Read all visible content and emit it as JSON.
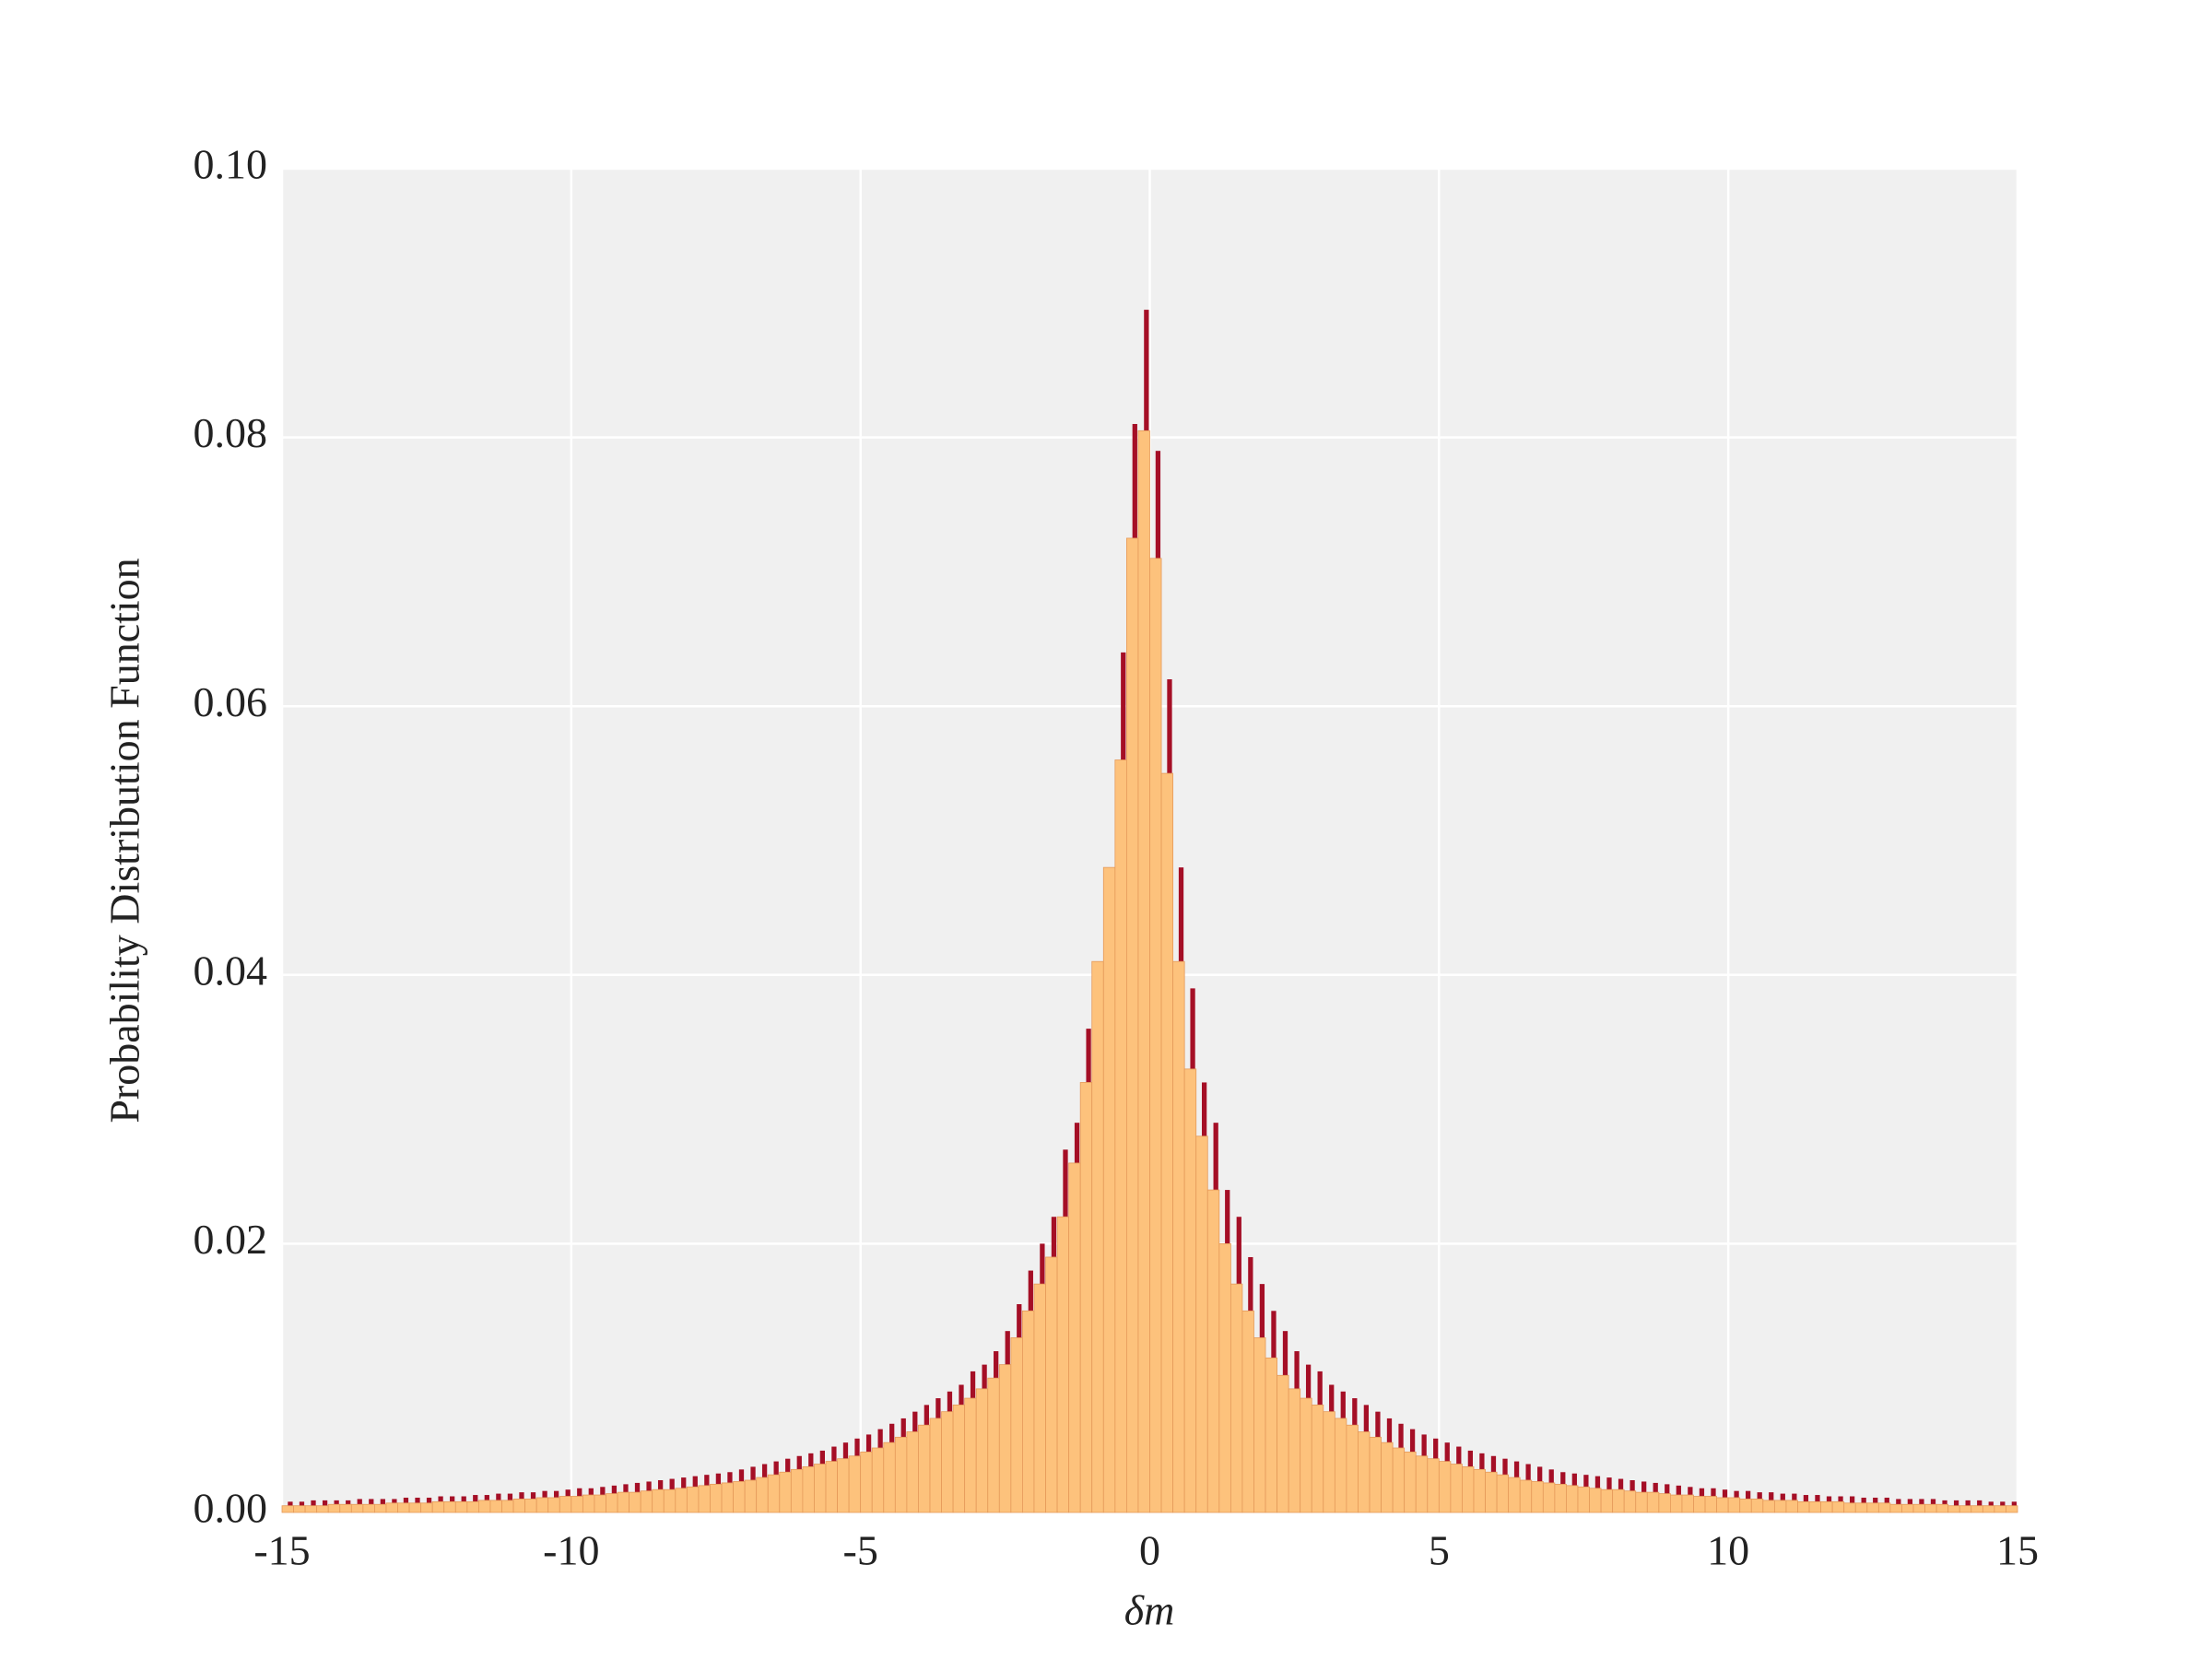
{
  "chart_data": {
    "type": "histogram",
    "xlabel": "δm",
    "ylabel": "Probability Distribution Function",
    "bins": [
      -15,
      -14.8,
      -14.6,
      -14.4,
      -14.2,
      -14,
      -13.8,
      -13.6,
      -13.4,
      -13.2,
      -13,
      -12.8,
      -12.6,
      -12.4,
      -12.2,
      -12,
      -11.8,
      -11.6,
      -11.4,
      -11.2,
      -11,
      -10.8,
      -10.6,
      -10.4,
      -10.2,
      -10,
      -9.8,
      -9.6,
      -9.4,
      -9.2,
      -9,
      -8.8,
      -8.6,
      -8.4,
      -8.2,
      -8,
      -7.8,
      -7.6,
      -7.4,
      -7.2,
      -7,
      -6.8,
      -6.6,
      -6.4,
      -6.2,
      -6,
      -5.8,
      -5.6,
      -5.4,
      -5.2,
      -5,
      -4.8,
      -4.6,
      -4.4,
      -4.2,
      -4,
      -3.8,
      -3.6,
      -3.4,
      -3.2,
      -3,
      -2.8,
      -2.6,
      -2.4,
      -2.2,
      -2,
      -1.8,
      -1.6,
      -1.4,
      -1.2,
      -1,
      -0.8,
      -0.6,
      -0.4,
      -0.2,
      0,
      0.2,
      0.4,
      0.6,
      0.8,
      1,
      1.2,
      1.4,
      1.6,
      1.8,
      2,
      2.2,
      2.4,
      2.6,
      2.8,
      3,
      3.2,
      3.4,
      3.6,
      3.8,
      4,
      4.2,
      4.4,
      4.6,
      4.8,
      5,
      5.2,
      5.4,
      5.6,
      5.8,
      6,
      6.2,
      6.4,
      6.6,
      6.8,
      7,
      7.2,
      7.4,
      7.6,
      7.8,
      8,
      8.2,
      8.4,
      8.6,
      8.8,
      9,
      9.2,
      9.4,
      9.6,
      9.8,
      10,
      10.2,
      10.4,
      10.6,
      10.8,
      11,
      11.2,
      11.4,
      11.6,
      11.8,
      12,
      12.2,
      12.4,
      12.6,
      12.8,
      13,
      13.2,
      13.4,
      13.6,
      13.8,
      14,
      14.2,
      14.4,
      14.6,
      14.8,
      15
    ],
    "series": [
      {
        "color": "#a50f26",
        "values": [
          0.0008,
          0.0008,
          0.0009,
          0.0009,
          0.0009,
          0.0009,
          0.001,
          0.001,
          0.001,
          0.001,
          0.0011,
          0.0011,
          0.0011,
          0.0012,
          0.0012,
          0.0012,
          0.0013,
          0.0013,
          0.0014,
          0.0014,
          0.0015,
          0.0015,
          0.0016,
          0.0016,
          0.0017,
          0.0018,
          0.0018,
          0.0019,
          0.002,
          0.0021,
          0.0022,
          0.0023,
          0.0024,
          0.0025,
          0.0026,
          0.0027,
          0.0028,
          0.0029,
          0.003,
          0.0032,
          0.0034,
          0.0036,
          0.0038,
          0.004,
          0.0042,
          0.0044,
          0.0046,
          0.0049,
          0.0052,
          0.0055,
          0.0058,
          0.0062,
          0.0066,
          0.007,
          0.0075,
          0.008,
          0.0085,
          0.009,
          0.0095,
          0.0105,
          0.011,
          0.012,
          0.0135,
          0.0155,
          0.018,
          0.02,
          0.022,
          0.027,
          0.029,
          0.036,
          0.04,
          0.048,
          0.064,
          0.081,
          0.0895,
          0.079,
          0.062,
          0.048,
          0.039,
          0.032,
          0.029,
          0.024,
          0.022,
          0.019,
          0.017,
          0.015,
          0.0135,
          0.012,
          0.011,
          0.0105,
          0.0095,
          0.009,
          0.0085,
          0.008,
          0.0075,
          0.007,
          0.0066,
          0.0062,
          0.0058,
          0.0055,
          0.0052,
          0.0049,
          0.0046,
          0.0044,
          0.0042,
          0.004,
          0.0038,
          0.0036,
          0.0034,
          0.0032,
          0.003,
          0.0029,
          0.0028,
          0.0027,
          0.0026,
          0.0025,
          0.0024,
          0.0023,
          0.0022,
          0.0021,
          0.002,
          0.0019,
          0.0018,
          0.0018,
          0.0017,
          0.0016,
          0.0016,
          0.0015,
          0.0015,
          0.0014,
          0.0014,
          0.0013,
          0.0013,
          0.0012,
          0.0012,
          0.0012,
          0.0011,
          0.0011,
          0.0011,
          0.001,
          0.001,
          0.001,
          0.001,
          0.0009,
          0.0009,
          0.0009,
          0.0009,
          0.0008,
          0.0008,
          0.0008
        ]
      },
      {
        "color": "#fdc27c",
        "values": [
          0.0005,
          0.0005,
          0.0005,
          0.0005,
          0.0006,
          0.0006,
          0.0006,
          0.0006,
          0.0006,
          0.0007,
          0.0007,
          0.0007,
          0.0007,
          0.0008,
          0.0008,
          0.0008,
          0.0008,
          0.0009,
          0.0009,
          0.0009,
          0.001,
          0.001,
          0.0011,
          0.0011,
          0.0012,
          0.0012,
          0.0013,
          0.0013,
          0.0014,
          0.0015,
          0.0015,
          0.0016,
          0.0017,
          0.0017,
          0.0018,
          0.0019,
          0.002,
          0.0021,
          0.0022,
          0.0023,
          0.0024,
          0.0026,
          0.0028,
          0.003,
          0.0032,
          0.0034,
          0.0036,
          0.0038,
          0.004,
          0.0042,
          0.0045,
          0.0048,
          0.0052,
          0.0056,
          0.006,
          0.0065,
          0.007,
          0.0075,
          0.008,
          0.0085,
          0.0092,
          0.01,
          0.011,
          0.013,
          0.015,
          0.017,
          0.019,
          0.022,
          0.026,
          0.032,
          0.041,
          0.048,
          0.056,
          0.0725,
          0.0805,
          0.071,
          0.055,
          0.041,
          0.033,
          0.028,
          0.024,
          0.02,
          0.017,
          0.015,
          0.013,
          0.0115,
          0.0102,
          0.0092,
          0.0085,
          0.008,
          0.0075,
          0.007,
          0.0065,
          0.006,
          0.0056,
          0.0052,
          0.0048,
          0.0045,
          0.0042,
          0.004,
          0.0038,
          0.0036,
          0.0034,
          0.0032,
          0.003,
          0.0028,
          0.0026,
          0.0024,
          0.0023,
          0.0022,
          0.0021,
          0.002,
          0.0019,
          0.0018,
          0.0017,
          0.0017,
          0.0016,
          0.0015,
          0.0015,
          0.0014,
          0.0013,
          0.0013,
          0.0012,
          0.0012,
          0.0011,
          0.0011,
          0.001,
          0.001,
          0.0009,
          0.0009,
          0.0009,
          0.0008,
          0.0008,
          0.0008,
          0.0008,
          0.0007,
          0.0007,
          0.0007,
          0.0007,
          0.0006,
          0.0006,
          0.0006,
          0.0006,
          0.0006,
          0.0005,
          0.0005,
          0.0005,
          0.0005,
          0.0005,
          0.0005
        ]
      }
    ],
    "xlim": [
      -15,
      15
    ],
    "xticks": [
      -15,
      -10,
      -5,
      0,
      5,
      10,
      15
    ],
    "ylim": [
      0,
      0.1
    ],
    "yticks": [
      {
        "value": 0,
        "label": "0.00"
      },
      {
        "value": 0.02,
        "label": "0.02"
      },
      {
        "value": 0.04,
        "label": "0.04"
      },
      {
        "value": 0.06,
        "label": "0.06"
      },
      {
        "value": 0.08,
        "label": "0.08"
      },
      {
        "value": 0.1,
        "label": "0.10"
      }
    ],
    "grid": true
  }
}
